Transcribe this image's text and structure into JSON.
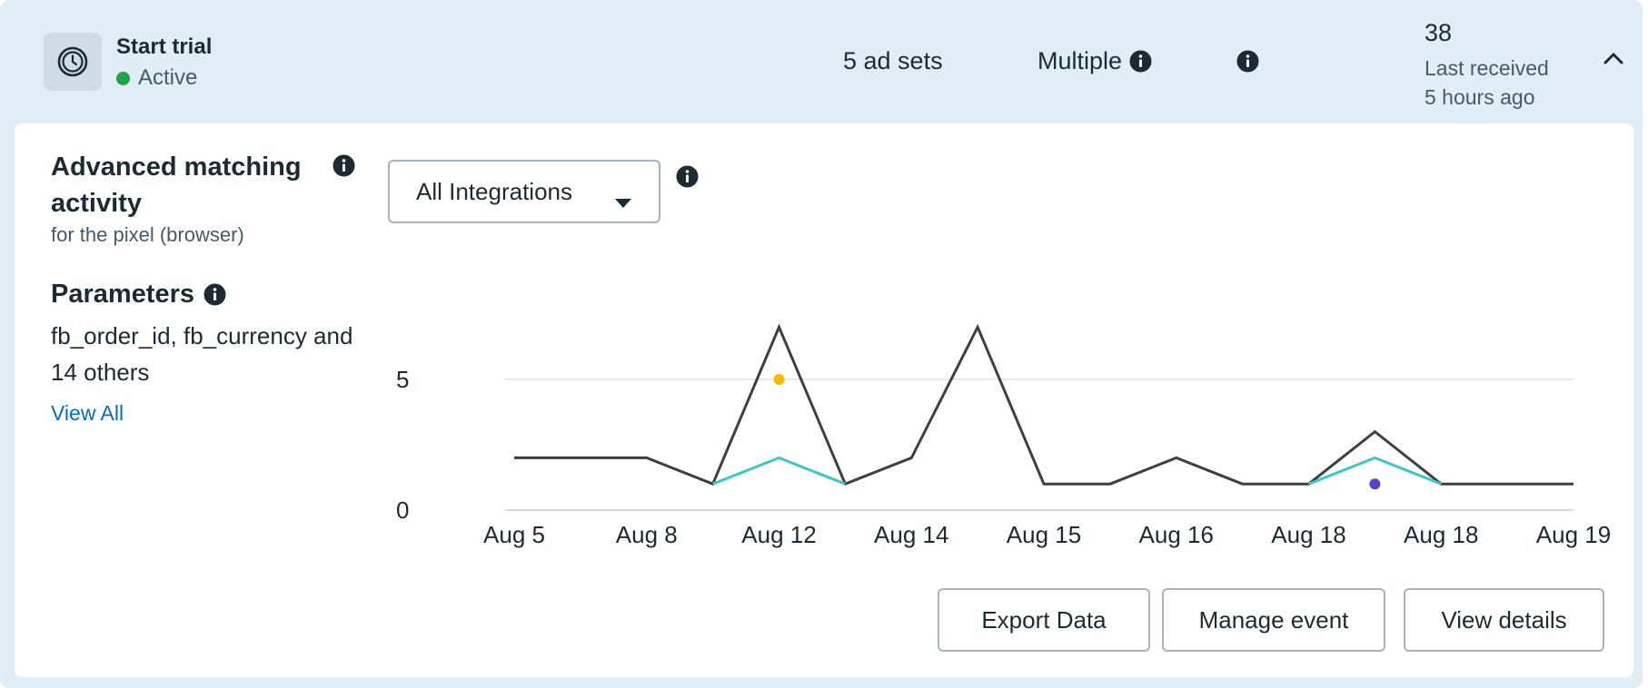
{
  "event": {
    "name": "Start trial",
    "status": "Active",
    "ad_sets": "5 ad sets",
    "attribution": "Multiple",
    "count": "38",
    "last_received_label": "Last received",
    "last_received_time": "5 hours ago"
  },
  "matching": {
    "title": "Advanced matching activity",
    "subtitle": "for the pixel (browser)",
    "parameters_title": "Parameters",
    "parameters_list": "fb_order_id, fb_currency and 14 others",
    "view_all": "View All"
  },
  "filter": {
    "selected": "All Integrations"
  },
  "buttons": {
    "export": "Export Data",
    "manage": "Manage event",
    "details": "View details"
  },
  "colors": {
    "series_total": "#3d3f42",
    "series_secondary": "#3cc8c4",
    "dot_yellow": "#f6b800",
    "dot_purple": "#5b3fbd",
    "status_active": "#1ea446"
  },
  "chart_data": {
    "type": "line",
    "categories": [
      "Aug 5",
      "Aug 8",
      "Aug 12",
      "Aug 14",
      "Aug 15",
      "Aug 16",
      "Aug 18",
      "Aug 18",
      "Aug 19"
    ],
    "x": [
      0,
      1,
      2,
      3,
      4,
      5,
      6,
      7,
      8,
      9,
      10,
      11,
      12,
      13,
      14,
      15,
      16
    ],
    "series": [
      {
        "values": [
          2,
          2,
          2,
          1,
          7,
          1,
          2,
          7,
          1,
          1,
          2,
          1,
          1,
          3,
          1,
          1,
          1
        ]
      },
      {
        "values": [
          null,
          null,
          null,
          1,
          2,
          1,
          null,
          null,
          null,
          null,
          null,
          null,
          1,
          2,
          1,
          null,
          null
        ]
      }
    ],
    "points": [
      {
        "x": 4,
        "y": 5,
        "color": "#f6b800"
      },
      {
        "x": 13,
        "y": 1,
        "color": "#5b3fbd"
      }
    ],
    "yticks": [
      0,
      5
    ],
    "ylim": [
      0,
      7.5
    ],
    "grid": true
  }
}
